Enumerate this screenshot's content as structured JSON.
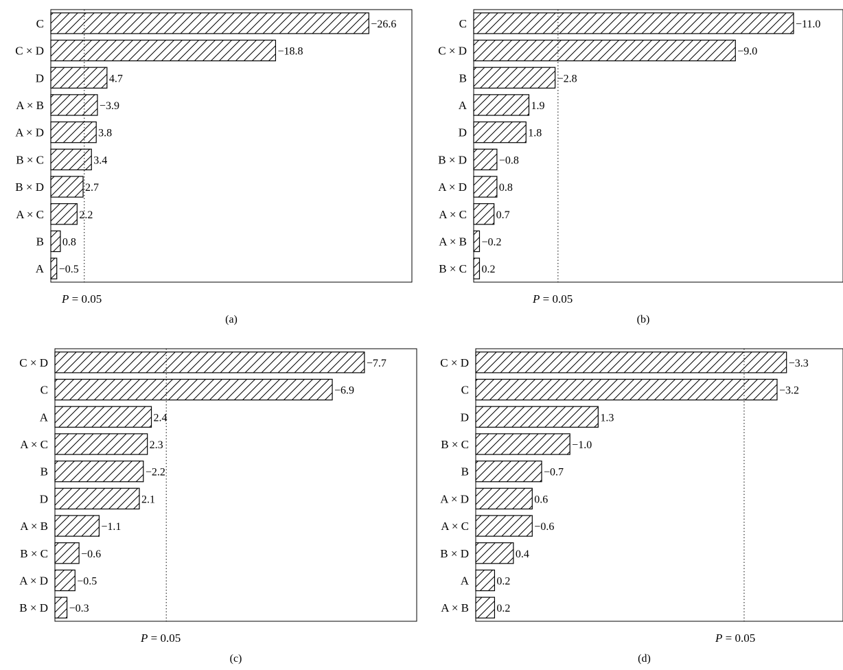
{
  "chart_data": [
    {
      "type": "bar",
      "orientation": "horizontal",
      "panel_label": "(a)",
      "categories": [
        "C",
        "C × D",
        "D",
        "A × B",
        "A × D",
        "B × C",
        "B × D",
        "A × C",
        "B",
        "A"
      ],
      "values": [
        -26.6,
        -18.8,
        4.7,
        -3.9,
        3.8,
        3.4,
        2.7,
        2.2,
        0.8,
        -0.5
      ],
      "value_labels": [
        "−26.6",
        "−18.8",
        "4.7",
        "−3.9",
        "3.8",
        "3.4",
        "2.7",
        "2.2",
        "0.8",
        "−0.5"
      ],
      "reference_line": {
        "label_var": "P",
        "label_rest": " = 0.05",
        "value": 2.8
      },
      "xlim": [
        0,
        30.2
      ],
      "grid": false
    },
    {
      "type": "bar",
      "orientation": "horizontal",
      "panel_label": "(b)",
      "categories": [
        "C",
        "C × D",
        "B",
        "A",
        "D",
        "B × D",
        "A × D",
        "A × C",
        "A × B",
        "B × C"
      ],
      "values": [
        -11.0,
        -9.0,
        -2.8,
        1.9,
        1.8,
        -0.8,
        0.8,
        0.7,
        -0.2,
        0.2
      ],
      "value_labels": [
        "−11.0",
        "−9.0",
        "−2.8",
        "1.9",
        "1.8",
        "−0.8",
        "0.8",
        "0.7",
        "−0.2",
        "0.2"
      ],
      "reference_line": {
        "label_var": "P",
        "label_rest": " = 0.05",
        "value": 2.9
      },
      "xlim": [
        0,
        12.7
      ],
      "grid": false
    },
    {
      "type": "bar",
      "orientation": "horizontal",
      "panel_label": "(c)",
      "categories": [
        "C × D",
        "C",
        "A",
        "A × C",
        "B",
        "D",
        "A × B",
        "B × C",
        "A × D",
        "B × D"
      ],
      "values": [
        -7.7,
        -6.9,
        2.4,
        2.3,
        -2.2,
        2.1,
        -1.1,
        -0.6,
        -0.5,
        -0.3
      ],
      "value_labels": [
        "−7.7",
        "−6.9",
        "2.4",
        "2.3",
        "−2.2",
        "2.1",
        "−1.1",
        "−0.6",
        "−0.5",
        "−0.3"
      ],
      "reference_line": {
        "label_var": "P",
        "label_rest": " = 0.05",
        "value": 2.77
      },
      "xlim": [
        0,
        9.0
      ],
      "grid": false
    },
    {
      "type": "bar",
      "orientation": "horizontal",
      "panel_label": "(d)",
      "categories": [
        "C × D",
        "C",
        "D",
        "B × C",
        "B",
        "A × D",
        "A × C",
        "B × D",
        "A",
        "A × B"
      ],
      "values": [
        -3.3,
        -3.2,
        1.3,
        -1.0,
        -0.7,
        0.6,
        -0.6,
        0.4,
        0.2,
        0.2
      ],
      "value_labels": [
        "−3.3",
        "−3.2",
        "1.3",
        "−1.0",
        "−0.7",
        "0.6",
        "−0.6",
        "0.4",
        "0.2",
        "0.2"
      ],
      "reference_line": {
        "label_var": "P",
        "label_rest": " = 0.05",
        "value": 2.85
      },
      "xlim": [
        0,
        3.9
      ],
      "grid": false
    }
  ]
}
